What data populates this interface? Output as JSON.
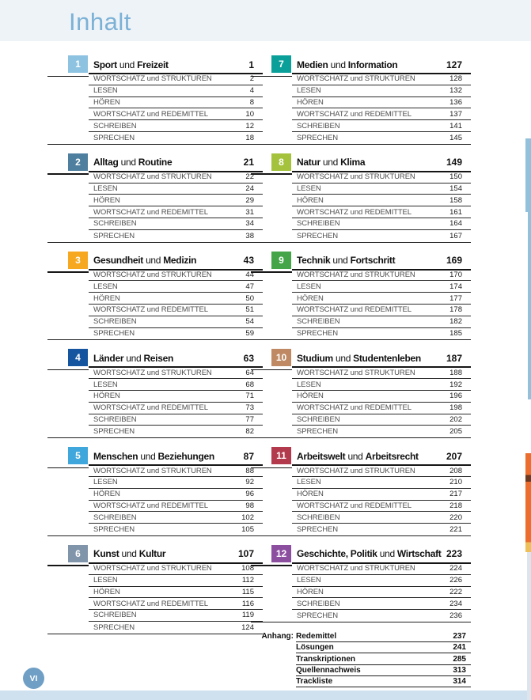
{
  "page": {
    "title": "Inhalt",
    "footer_page_label": "VI"
  },
  "colors": {
    "header_bg": "#edf3f7",
    "title": "#7cb1d6",
    "edge_tab": "#93c1dc",
    "edge_orange": "#eb6e2e",
    "edge_orange_dark": "#6b3a20",
    "edge_gold": "#eec059",
    "edge_gray": "#dce5ec",
    "bottom_band": "#cfe1ee",
    "footer_circle": "#6f9fc5"
  },
  "chapters": [
    {
      "num": "1",
      "color": "#8dc2e0",
      "page": "1",
      "title_parts": {
        "b1": "Sport",
        "mid": "und",
        "b2": "Freizeit"
      },
      "rows": [
        {
          "label": "WORTSCHATZ und STRUKTUREN",
          "page": "2"
        },
        {
          "label": "LESEN",
          "page": "4"
        },
        {
          "label": "HÖREN",
          "page": "8"
        },
        {
          "label": "WORTSCHATZ und REDEMITTEL",
          "page": "10"
        },
        {
          "label": "SCHREIBEN",
          "page": "12"
        },
        {
          "label": "SPRECHEN",
          "page": "18"
        }
      ]
    },
    {
      "num": "2",
      "color": "#4e7f9e",
      "page": "21",
      "title_parts": {
        "b1": "Alltag",
        "mid": "und",
        "b2": "Routine"
      },
      "rows": [
        {
          "label": "WORTSCHATZ und STRUKTUREN",
          "page": "22"
        },
        {
          "label": "LESEN",
          "page": "24"
        },
        {
          "label": "HÖREN",
          "page": "29"
        },
        {
          "label": "WORTSCHATZ und REDEMITTEL",
          "page": "31"
        },
        {
          "label": "SCHREIBEN",
          "page": "34"
        },
        {
          "label": "SPRECHEN",
          "page": "38"
        }
      ]
    },
    {
      "num": "3",
      "color": "#f6a821",
      "page": "43",
      "title_parts": {
        "b1": "Gesundheit",
        "mid": "und",
        "b2": "Medizin"
      },
      "rows": [
        {
          "label": "WORTSCHATZ und STRUKTUREN",
          "page": "44"
        },
        {
          "label": "LESEN",
          "page": "47"
        },
        {
          "label": "HÖREN",
          "page": "50"
        },
        {
          "label": "WORTSCHATZ und REDEMITTEL",
          "page": "51"
        },
        {
          "label": "SCHREIBEN",
          "page": "54"
        },
        {
          "label": "SPRECHEN",
          "page": "59"
        }
      ]
    },
    {
      "num": "4",
      "color": "#15559f",
      "page": "63",
      "title_parts": {
        "b1": "Länder",
        "mid": "und",
        "b2": "Reisen"
      },
      "rows": [
        {
          "label": "WORTSCHATZ und STRUKTUREN",
          "page": "64"
        },
        {
          "label": "LESEN",
          "page": "68"
        },
        {
          "label": "HÖREN",
          "page": "71"
        },
        {
          "label": "WORTSCHATZ und REDEMITTEL",
          "page": "73"
        },
        {
          "label": "SCHREIBEN",
          "page": "77"
        },
        {
          "label": "SPRECHEN",
          "page": "82"
        }
      ]
    },
    {
      "num": "5",
      "color": "#3fa7dc",
      "page": "87",
      "title_parts": {
        "b1": "Menschen",
        "mid": "und",
        "b2": "Beziehungen"
      },
      "rows": [
        {
          "label": "WORTSCHATZ und STRUKTUREN",
          "page": "88"
        },
        {
          "label": "LESEN",
          "page": "92"
        },
        {
          "label": "HÖREN",
          "page": "96"
        },
        {
          "label": "WORTSCHATZ und REDEMITTEL",
          "page": "98"
        },
        {
          "label": "SCHREIBEN",
          "page": "102"
        },
        {
          "label": "SPRECHEN",
          "page": "105"
        }
      ]
    },
    {
      "num": "6",
      "color": "#8095aa",
      "page": "107",
      "title_parts": {
        "b1": "Kunst",
        "mid": "und",
        "b2": "Kultur"
      },
      "rows": [
        {
          "label": "WORTSCHATZ und STRUKTUREN",
          "page": "108"
        },
        {
          "label": "LESEN",
          "page": "112"
        },
        {
          "label": "HÖREN",
          "page": "115"
        },
        {
          "label": "WORTSCHATZ und REDEMITTEL",
          "page": "116"
        },
        {
          "label": "SCHREIBEN",
          "page": "119"
        },
        {
          "label": "SPRECHEN",
          "page": "124"
        }
      ]
    },
    {
      "num": "7",
      "color": "#0aa099",
      "page": "127",
      "title_parts": {
        "b1": "Medien",
        "mid": "und",
        "b2": "Information"
      },
      "rows": [
        {
          "label": "WORTSCHATZ und STRUKTUREN",
          "page": "128"
        },
        {
          "label": "LESEN",
          "page": "132"
        },
        {
          "label": "HÖREN",
          "page": "136"
        },
        {
          "label": "WORTSCHATZ und REDEMITTEL",
          "page": "137"
        },
        {
          "label": "SCHREIBEN",
          "page": "141"
        },
        {
          "label": "SPRECHEN",
          "page": "145"
        }
      ]
    },
    {
      "num": "8",
      "color": "#a4c23c",
      "page": "149",
      "title_parts": {
        "b1": "Natur",
        "mid": "und",
        "b2": "Klima"
      },
      "rows": [
        {
          "label": "WORTSCHATZ und STRUKTUREN",
          "page": "150"
        },
        {
          "label": "LESEN",
          "page": "154"
        },
        {
          "label": "HÖREN",
          "page": "158"
        },
        {
          "label": "WORTSCHATZ und REDEMITTEL",
          "page": "161"
        },
        {
          "label": "SCHREIBEN",
          "page": "164"
        },
        {
          "label": "SPRECHEN",
          "page": "167"
        }
      ]
    },
    {
      "num": "9",
      "color": "#43a547",
      "page": "169",
      "title_parts": {
        "b1": "Technik",
        "mid": "und",
        "b2": "Fortschritt"
      },
      "rows": [
        {
          "label": "WORTSCHATZ und STRUKTUREN",
          "page": "170"
        },
        {
          "label": "LESEN",
          "page": "174"
        },
        {
          "label": "HÖREN",
          "page": "177"
        },
        {
          "label": "WORTSCHATZ und REDEMITTEL",
          "page": "178"
        },
        {
          "label": "SCHREIBEN",
          "page": "182"
        },
        {
          "label": "SPRECHEN",
          "page": "185"
        }
      ]
    },
    {
      "num": "10",
      "color": "#bf8a63",
      "page": "187",
      "title_parts": {
        "b1": "Studium",
        "mid": "und",
        "b2": "Studentenleben"
      },
      "rows": [
        {
          "label": "WORTSCHATZ und STRUKTUREN",
          "page": "188"
        },
        {
          "label": "LESEN",
          "page": "192"
        },
        {
          "label": "HÖREN",
          "page": "196"
        },
        {
          "label": "WORTSCHATZ und REDEMITTEL",
          "page": "198"
        },
        {
          "label": "SCHREIBEN",
          "page": "202"
        },
        {
          "label": "SPRECHEN",
          "page": "205"
        }
      ]
    },
    {
      "num": "11",
      "color": "#b23a4c",
      "page": "207",
      "title_parts": {
        "b1": "Arbeitswelt",
        "mid": "und",
        "b2": "Arbeitsrecht"
      },
      "rows": [
        {
          "label": "WORTSCHATZ und STRUKTUREN",
          "page": "208"
        },
        {
          "label": "LESEN",
          "page": "210"
        },
        {
          "label": "HÖREN",
          "page": "217"
        },
        {
          "label": "WORTSCHATZ und REDEMITTEL",
          "page": "218"
        },
        {
          "label": "SCHREIBEN",
          "page": "220"
        },
        {
          "label": "SPRECHEN",
          "page": "221"
        }
      ]
    },
    {
      "num": "12",
      "color": "#8c4fa0",
      "page": "223",
      "title_parts": {
        "b1": "Geschichte, Politik",
        "mid": "und",
        "b2": "Wirtschaft"
      },
      "rows": [
        {
          "label": "WORTSCHATZ und STRUKTUREN",
          "page": "224"
        },
        {
          "label": "LESEN",
          "page": "226"
        },
        {
          "label": "HÖREN",
          "page": "222"
        },
        {
          "label": "SCHREIBEN",
          "page": "234"
        },
        {
          "label": "SPRECHEN",
          "page": "236"
        }
      ]
    }
  ],
  "anhang": {
    "prefix": "Anhang:",
    "items": [
      {
        "label": "Redemittel",
        "page": "237"
      },
      {
        "label": "Lösungen",
        "page": "241"
      },
      {
        "label": "Transkriptionen",
        "page": "285"
      },
      {
        "label": "Quellennachweis",
        "page": "313"
      },
      {
        "label": "Trackliste",
        "page": "314"
      }
    ]
  }
}
